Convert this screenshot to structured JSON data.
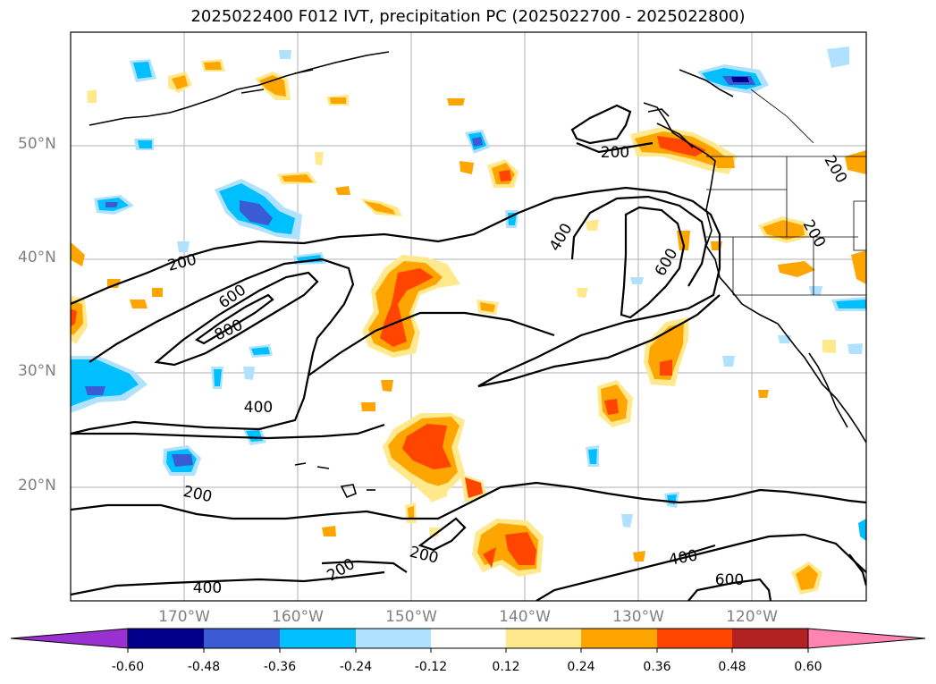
{
  "title": "2025022400 F012 IVT, precipitation PC (2025022700 - 2025022800)",
  "lat_labels": [
    "50°N",
    "40°N",
    "30°N",
    "20°N"
  ],
  "lon_labels": [
    "170°W",
    "160°W",
    "150°W",
    "140°W",
    "130°W",
    "120°W"
  ],
  "ivt_contour_labels": [
    "200",
    "200",
    "200",
    "200",
    "200",
    "200",
    "400",
    "400",
    "400",
    "400",
    "600",
    "600",
    "600",
    "800"
  ],
  "colorbar": {
    "ticks": [
      "-0.60",
      "-0.48",
      "-0.36",
      "-0.24",
      "-0.12",
      "0.12",
      "0.24",
      "0.36",
      "0.48",
      "0.60"
    ],
    "colors": [
      "#9b30d0",
      "#00008b",
      "#3a5bd4",
      "#00bfff",
      "#b0e2ff",
      "#ffffff",
      "#ffe98c",
      "#ffa500",
      "#ff4500",
      "#b22222",
      "#ff85b0"
    ]
  },
  "map_colors": {
    "orange": "#ffa500",
    "red_orange": "#ff4500",
    "light_yellow": "#ffe98c",
    "deep_sky_blue": "#00bfff",
    "light_blue": "#b0e2ff",
    "royal_blue": "#3a5bd4",
    "navy": "#00008b"
  }
}
